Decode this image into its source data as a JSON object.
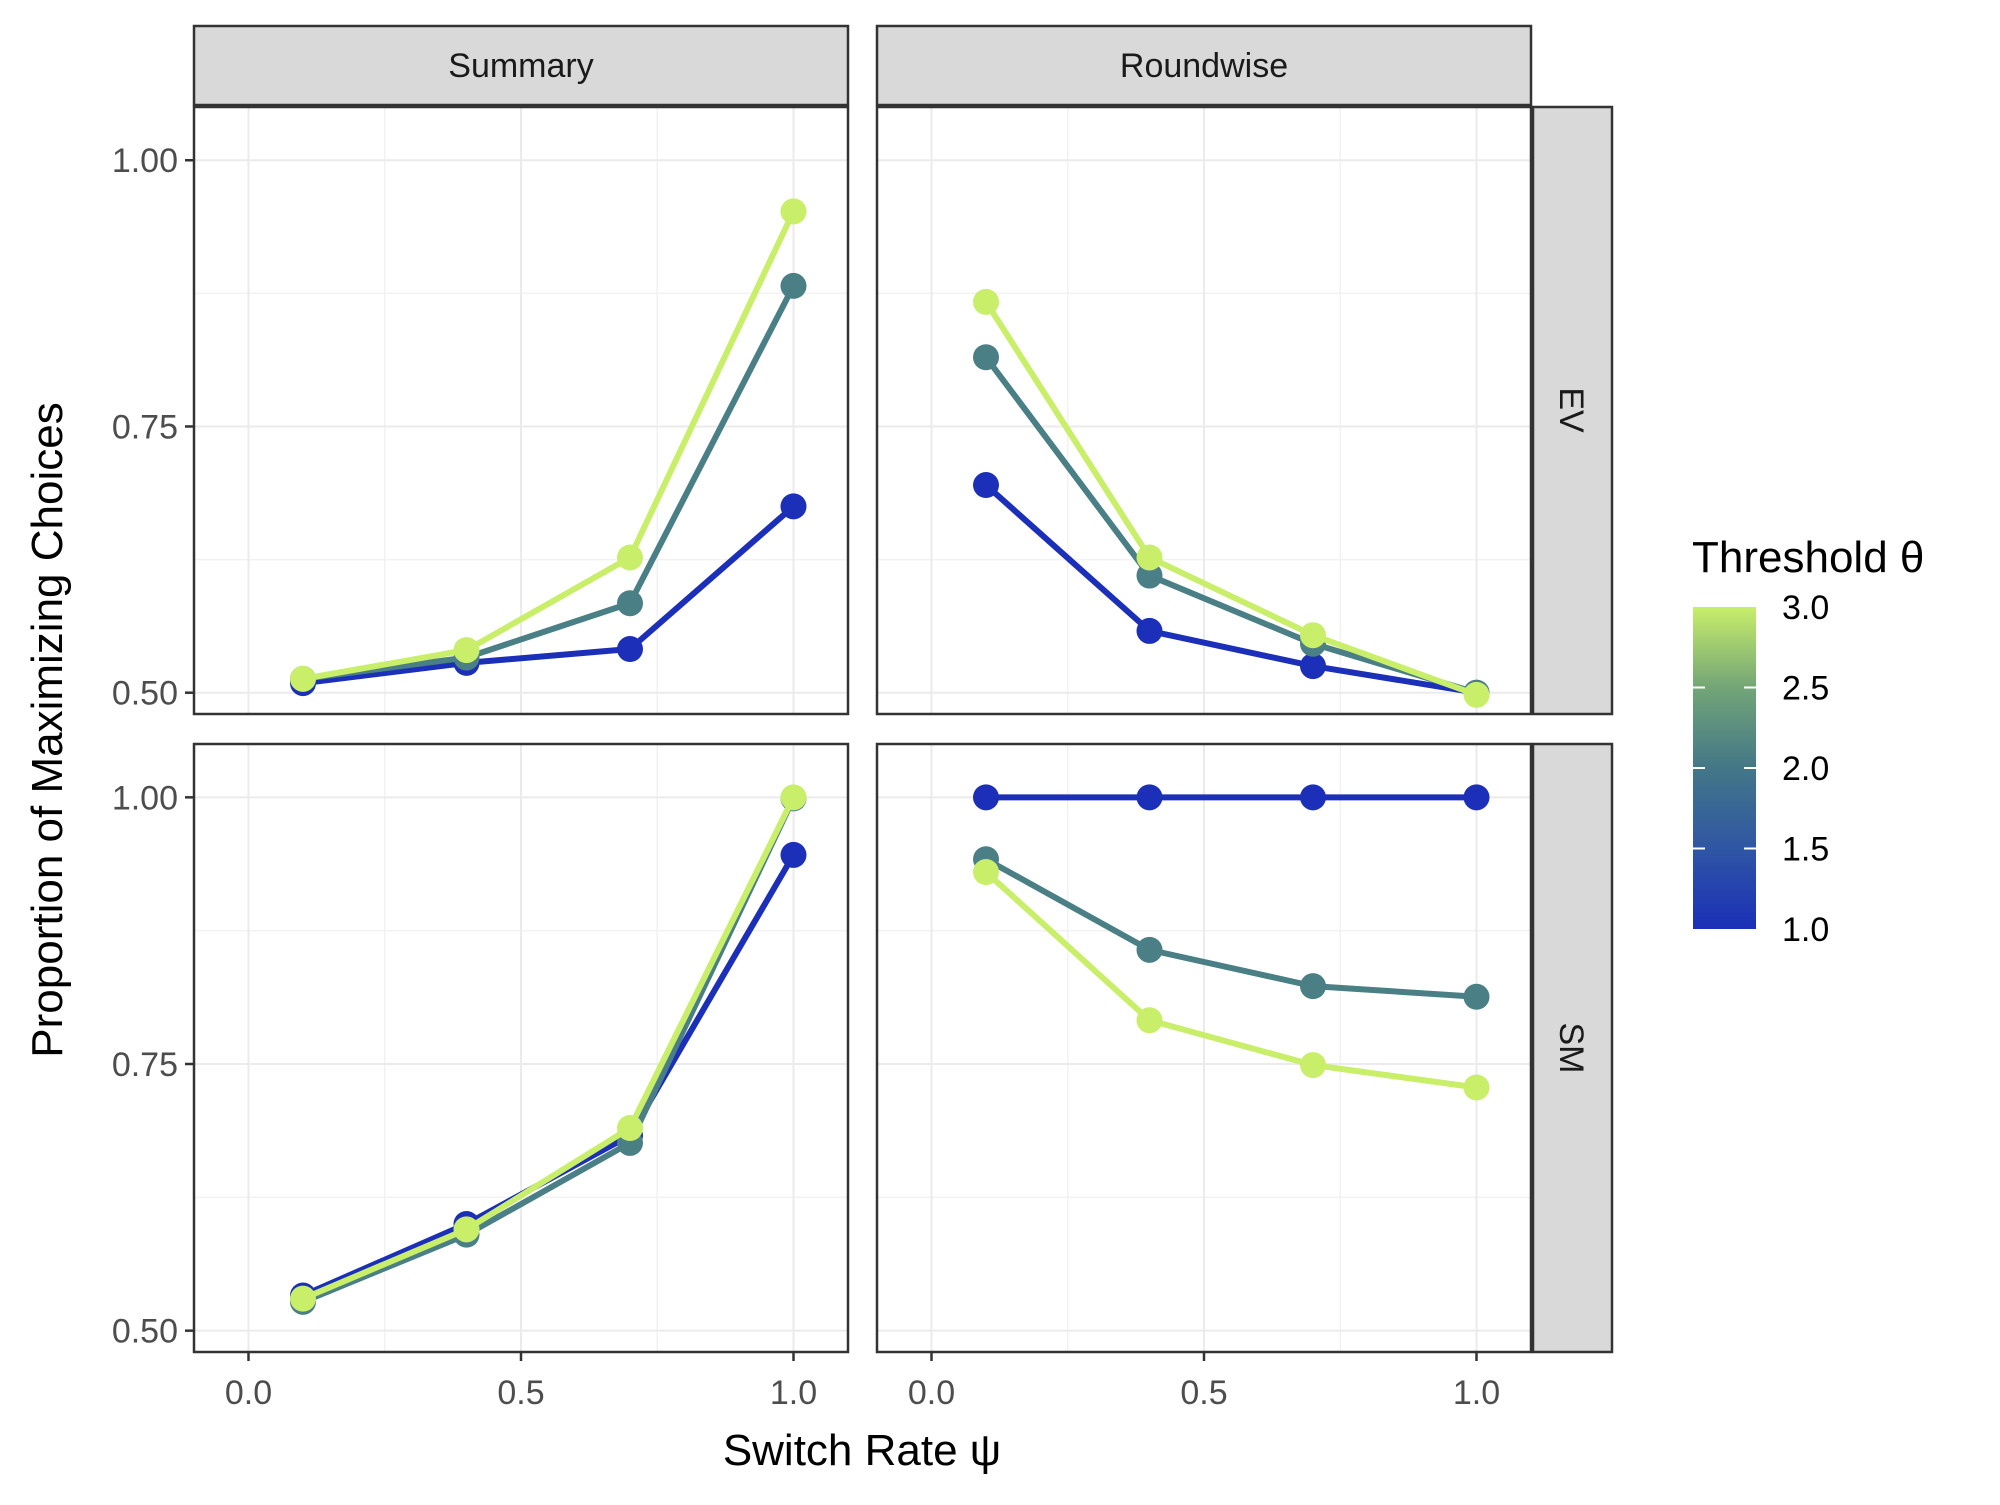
{
  "chart_data": {
    "type": "line",
    "title": "",
    "xlabel": "Switch Rate ψ",
    "ylabel": "Proportion of Maximizing Choices",
    "xlim": [
      -0.1,
      1.1
    ],
    "ylim": [
      0.48,
      1.05
    ],
    "x_ticks": [
      0.0,
      0.5,
      1.0
    ],
    "x_tick_labels": [
      "0.0",
      "0.5",
      "1.0"
    ],
    "y_ticks": [
      0.5,
      0.75,
      1.0
    ],
    "y_tick_labels": [
      "0.50",
      "0.75",
      "1.00"
    ],
    "grid": true,
    "facet_columns": [
      "Summary",
      "Roundwise"
    ],
    "facet_rows": [
      "EV",
      "SM"
    ],
    "legend": {
      "title": "Threshold θ",
      "type": "colorbar",
      "placement": "right",
      "range": [
        1.0,
        3.0
      ],
      "tick_labels": [
        "3.0",
        "2.5",
        "2.0",
        "1.5",
        "1.0"
      ],
      "colors": {
        "low": "#1b2fb8",
        "mid": "#4a7f86",
        "high": "#c8ee6a"
      }
    },
    "x": [
      0.1,
      0.4,
      0.7,
      1.0
    ],
    "panels": [
      {
        "column": "Summary",
        "row": "EV",
        "series": [
          {
            "threshold": 1,
            "color": "#1b2fb8",
            "values": [
              0.509,
              0.528,
              0.541,
              0.675
            ]
          },
          {
            "threshold": 2,
            "color": "#4a7f86",
            "values": [
              0.513,
              0.533,
              0.584,
              0.882
            ]
          },
          {
            "threshold": 3,
            "color": "#c8ee6a",
            "values": [
              0.513,
              0.54,
              0.627,
              0.952
            ]
          }
        ]
      },
      {
        "column": "Roundwise",
        "row": "EV",
        "series": [
          {
            "threshold": 1,
            "color": "#1b2fb8",
            "values": [
              0.695,
              0.558,
              0.525,
              0.5
            ]
          },
          {
            "threshold": 2,
            "color": "#4a7f86",
            "values": [
              0.815,
              0.61,
              0.546,
              0.5
            ]
          },
          {
            "threshold": 3,
            "color": "#c8ee6a",
            "values": [
              0.867,
              0.627,
              0.554,
              0.498
            ]
          }
        ]
      },
      {
        "column": "Summary",
        "row": "SM",
        "series": [
          {
            "threshold": 1,
            "color": "#1b2fb8",
            "values": [
              0.533,
              0.6,
              0.683,
              0.946
            ]
          },
          {
            "threshold": 2,
            "color": "#4a7f86",
            "values": [
              0.527,
              0.59,
              0.676,
              0.999
            ]
          },
          {
            "threshold": 3,
            "color": "#c8ee6a",
            "values": [
              0.53,
              0.595,
              0.69,
              1.0
            ]
          }
        ]
      },
      {
        "column": "Roundwise",
        "row": "SM",
        "series": [
          {
            "threshold": 1,
            "color": "#1b2fb8",
            "values": [
              1.0,
              1.0,
              1.0,
              1.0
            ]
          },
          {
            "threshold": 2,
            "color": "#4a7f86",
            "values": [
              0.942,
              0.857,
              0.823,
              0.813
            ]
          },
          {
            "threshold": 3,
            "color": "#c8ee6a",
            "values": [
              0.93,
              0.791,
              0.749,
              0.728
            ]
          }
        ]
      }
    ]
  }
}
